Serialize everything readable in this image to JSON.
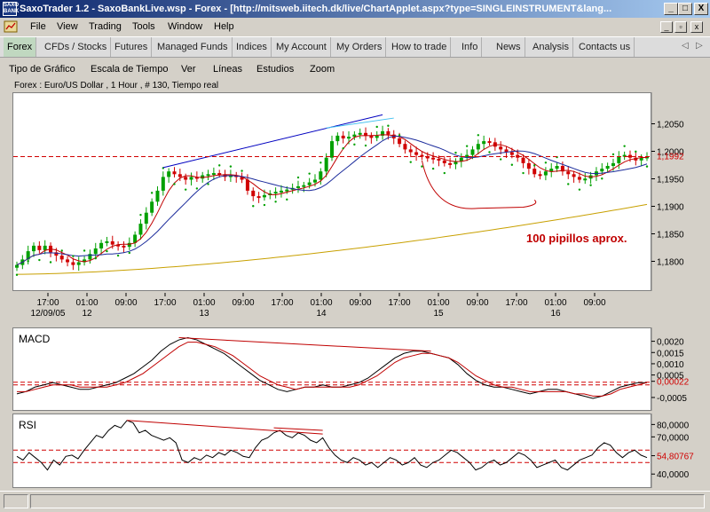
{
  "window": {
    "title": "SaxoTrader 1.2 - SaxoBankLive.wsp - Forex - [http://mitsweb.iitech.dk/live/ChartApplet.aspx?type=SINGLEINSTRUMENT&lang...",
    "app_icon_text": "SAXO BANK",
    "controls": [
      "_",
      "□",
      "X"
    ]
  },
  "menu": [
    "File",
    "View",
    "Trading",
    "Tools",
    "Window",
    "Help"
  ],
  "nav_tabs": [
    "Forex",
    "CFDs / Stocks",
    "Futures",
    "Managed Funds",
    "Indices",
    "My Account",
    "My Orders",
    "How to trade",
    "Info",
    "News",
    "Analysis",
    "Contacts us"
  ],
  "chart_menu": [
    "Tipo de Gráfico",
    "Escala de Tiempo",
    "Ver",
    "Líneas",
    "Estudios",
    "Zoom"
  ],
  "chart_info": "Forex : Euro/US Dollar , 1 Hour , # 130, Tiempo real",
  "colors": {
    "accent": "#0a246a",
    "active_tab": "#c0d8c0",
    "bullish_candle": "#00a000",
    "bearish_candle": "#d00000",
    "upper_trendline": "#0000c0",
    "cyan_trendline": "#40c0f0",
    "sma_fast": "#c00000",
    "sma_mid": "#1c2c9c",
    "sma_slow": "#c8a000",
    "dashed_level": "#d00000",
    "annotation": "#c00000",
    "parabolic_sar": "#00a000"
  },
  "chart_data": [
    {
      "type": "candlestick",
      "title": "",
      "symbol": "Euro/US Dollar",
      "timeframe": "1 Hour",
      "x_tick_labels": [
        {
          "time": "17:00",
          "date": "12/09/05"
        },
        {
          "time": "01:00",
          "date": "12"
        },
        {
          "time": "09:00",
          "date": ""
        },
        {
          "time": "17:00",
          "date": ""
        },
        {
          "time": "01:00",
          "date": "13"
        },
        {
          "time": "09:00",
          "date": ""
        },
        {
          "time": "17:00",
          "date": ""
        },
        {
          "time": "01:00",
          "date": "14"
        },
        {
          "time": "09:00",
          "date": ""
        },
        {
          "time": "17:00",
          "date": ""
        },
        {
          "time": "01:00",
          "date": "15"
        },
        {
          "time": "09:00",
          "date": ""
        },
        {
          "time": "17:00",
          "date": ""
        },
        {
          "time": "01:00",
          "date": "16"
        },
        {
          "time": "09:00",
          "date": ""
        }
      ],
      "y_tick_labels": [
        "1,2050",
        "1,2000",
        "1,1950",
        "1,1900",
        "1,1850",
        "1,1800"
      ],
      "ylim": [
        1.1775,
        1.2075
      ],
      "current_level": {
        "value": 1.1992,
        "label": "1,1992"
      },
      "annotation": "100 pipillos aprox.",
      "close_series": [
        1.1795,
        1.1805,
        1.182,
        1.183,
        1.1822,
        1.183,
        1.1818,
        1.1812,
        1.1805,
        1.18,
        1.1795,
        1.18,
        1.1805,
        1.1815,
        1.1825,
        1.1835,
        1.1838,
        1.1832,
        1.183,
        1.1828,
        1.1835,
        1.185,
        1.187,
        1.189,
        1.191,
        1.193,
        1.1955,
        1.1965,
        1.196,
        1.1955,
        1.195,
        1.1955,
        1.1952,
        1.1958,
        1.196,
        1.1962,
        1.196,
        1.1955,
        1.1958,
        1.1955,
        1.195,
        1.193,
        1.192,
        1.1918,
        1.1922,
        1.1925,
        1.1928,
        1.193,
        1.1932,
        1.1935,
        1.1938,
        1.194,
        1.1945,
        1.195,
        1.1965,
        1.199,
        1.202,
        1.203,
        1.2025,
        1.2028,
        1.2032,
        1.2035,
        1.203,
        1.2026,
        1.203,
        1.2038,
        1.2032,
        1.2025,
        1.2015,
        1.2005,
        1.2,
        1.1995,
        1.1992,
        1.199,
        1.1988,
        1.1985,
        1.198,
        1.1978,
        1.1983,
        1.199,
        1.1995,
        1.2005,
        1.2015,
        1.202,
        1.2018,
        1.201,
        1.2005,
        1.2,
        1.1995,
        1.199,
        1.198,
        1.197,
        1.196,
        1.1958,
        1.1965,
        1.197,
        1.1975,
        1.1965,
        1.196,
        1.1955,
        1.195,
        1.1952,
        1.1958,
        1.1965,
        1.197,
        1.1975,
        1.198,
        1.1992,
        1.1995,
        1.199,
        1.1985,
        1.199,
        1.1992
      ],
      "series": [
        "Euro/US Dollar"
      ]
    },
    {
      "type": "line",
      "title": "MACD",
      "y_tick_labels": [
        "0,0020",
        "0,0015",
        "0,0010",
        "0,0005",
        "0,00022",
        "-0,0005"
      ],
      "ylim": [
        -0.0007,
        0.0023
      ],
      "current_level": {
        "value": 0.00022,
        "label": "0,00022"
      },
      "macd": [
        -0.0003,
        -0.0002,
        0.0,
        0.0001,
        0.0002,
        0.0001,
        0.0,
        -0.0001,
        -0.0001,
        0.0,
        0.0001,
        0.0002,
        0.0004,
        0.0006,
        0.0009,
        0.0012,
        0.0016,
        0.0019,
        0.0021,
        0.0022,
        0.0021,
        0.0019,
        0.0017,
        0.0015,
        0.0012,
        0.0009,
        0.0006,
        0.0003,
        0.0001,
        -0.0001,
        -0.0002,
        -0.0001,
        0.0,
        0.0,
        0.0001,
        0.0,
        0.0,
        0.0001,
        0.0002,
        0.0004,
        0.0007,
        0.001,
        0.0013,
        0.0015,
        0.0016,
        0.0016,
        0.0015,
        0.0014,
        0.0013,
        0.001,
        0.0006,
        0.0003,
        0.0001,
        0.0,
        0.0,
        -0.0001,
        -0.0002,
        -0.0003,
        -0.0002,
        -0.0001,
        -0.0001,
        -0.0002,
        -0.0003,
        -0.0004,
        -0.0005,
        -0.0004,
        -0.0002,
        0.0,
        0.0001,
        0.0002,
        0.0002
      ],
      "signal": [
        -0.0002,
        -0.0002,
        -0.0001,
        0.0,
        0.0001,
        0.0001,
        0.0001,
        0.0,
        0.0,
        0.0,
        0.0,
        0.0001,
        0.0002,
        0.0004,
        0.0006,
        0.0009,
        0.0012,
        0.0015,
        0.0018,
        0.002,
        0.002,
        0.0019,
        0.0018,
        0.0016,
        0.0014,
        0.0011,
        0.0008,
        0.0005,
        0.0003,
        0.0001,
        0.0,
        -0.0001,
        0.0,
        0.0,
        0.0,
        0.0,
        0.0,
        0.0,
        0.0001,
        0.0003,
        0.0005,
        0.0008,
        0.0011,
        0.0013,
        0.0014,
        0.0015,
        0.0015,
        0.0014,
        0.0013,
        0.0011,
        0.0008,
        0.0005,
        0.0003,
        0.0001,
        0.0,
        0.0,
        -0.0001,
        -0.0002,
        -0.0002,
        -0.0002,
        -0.0002,
        -0.0002,
        -0.0003,
        -0.0003,
        -0.0004,
        -0.0004,
        -0.0003,
        -0.0001,
        0.0,
        0.0001,
        0.0002
      ]
    },
    {
      "type": "line",
      "title": "RSI",
      "y_tick_labels": [
        "80,0000",
        "70,0000",
        "54,80767",
        "40,0000"
      ],
      "ylim": [
        33,
        86
      ],
      "current_level": {
        "value": 54.80767,
        "label": "54,80767"
      },
      "levels": [
        60,
        50
      ],
      "values": [
        55,
        52,
        58,
        54,
        50,
        44,
        52,
        48,
        55,
        56,
        53,
        60,
        66,
        72,
        70,
        76,
        80,
        78,
        84,
        82,
        74,
        76,
        72,
        70,
        68,
        70,
        66,
        52,
        50,
        54,
        52,
        56,
        54,
        58,
        56,
        60,
        58,
        55,
        54,
        62,
        68,
        70,
        74,
        76,
        72,
        70,
        74,
        72,
        68,
        66,
        70,
        62,
        56,
        52,
        50,
        54,
        52,
        48,
        50,
        46,
        50,
        54,
        52,
        48,
        50,
        54,
        48,
        46,
        50,
        52,
        56,
        60,
        58,
        54,
        50,
        44,
        46,
        50,
        52,
        48,
        50,
        54,
        58,
        56,
        52,
        46,
        48,
        50,
        52,
        46,
        44,
        48,
        52,
        54,
        56,
        62,
        66,
        64,
        58,
        54,
        58,
        60,
        56,
        54
      ]
    }
  ]
}
